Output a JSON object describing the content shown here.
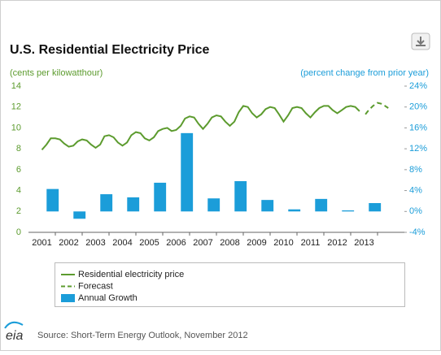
{
  "chart_data": {
    "type": "line",
    "title": "U.S. Residential Electricity Price",
    "ylabel": "(cents per kilowatthour)",
    "y2label": "(percent change from prior year)",
    "source": "Source: Short-Term Energy Outlook, November 2012",
    "logo": "eia",
    "xlim": [
      2000.5,
      2014.5
    ],
    "xticks": [
      2001,
      2002,
      2003,
      2004,
      2005,
      2006,
      2007,
      2008,
      2009,
      2010,
      2011,
      2012,
      2013
    ],
    "ylim": [
      0,
      14
    ],
    "yticks": [
      0,
      2,
      4,
      6,
      8,
      10,
      12,
      14
    ],
    "y2lim": [
      -4,
      24
    ],
    "y2ticks": [
      {
        "value": -4,
        "label": "-4%"
      },
      {
        "value": 0,
        "label": "0%"
      },
      {
        "value": 4,
        "label": "4%"
      },
      {
        "value": 8,
        "label": "8%"
      },
      {
        "value": 12,
        "label": "12%"
      },
      {
        "value": 16,
        "label": "16%"
      },
      {
        "value": 20,
        "label": "20%"
      },
      {
        "value": 24,
        "label": "24%"
      }
    ],
    "series": [
      {
        "name": "Residential electricity price",
        "type": "line",
        "color": "#5c9b2e",
        "x": [
          2001,
          2001.17,
          2001.33,
          2001.5,
          2001.67,
          2001.83,
          2002,
          2002.17,
          2002.33,
          2002.5,
          2002.67,
          2002.83,
          2003,
          2003.17,
          2003.33,
          2003.5,
          2003.67,
          2003.83,
          2004,
          2004.17,
          2004.33,
          2004.5,
          2004.67,
          2004.83,
          2005,
          2005.17,
          2005.33,
          2005.5,
          2005.67,
          2005.83,
          2006,
          2006.17,
          2006.33,
          2006.5,
          2006.67,
          2006.83,
          2007,
          2007.17,
          2007.33,
          2007.5,
          2007.67,
          2007.83,
          2008,
          2008.17,
          2008.33,
          2008.5,
          2008.67,
          2008.83,
          2009,
          2009.17,
          2009.33,
          2009.5,
          2009.67,
          2009.83,
          2010,
          2010.17,
          2010.33,
          2010.5,
          2010.67,
          2010.83,
          2011,
          2011.17,
          2011.33,
          2011.5,
          2011.67,
          2011.83,
          2012,
          2012.17,
          2012.33,
          2012.5,
          2012.67,
          2012.83
        ],
        "values": [
          7.9,
          8.4,
          9.0,
          9.0,
          8.9,
          8.5,
          8.2,
          8.3,
          8.7,
          8.9,
          8.8,
          8.4,
          8.1,
          8.4,
          9.2,
          9.3,
          9.1,
          8.6,
          8.3,
          8.6,
          9.3,
          9.6,
          9.5,
          9.0,
          8.8,
          9.1,
          9.7,
          9.9,
          10.0,
          9.7,
          9.8,
          10.2,
          10.9,
          11.1,
          11.0,
          10.4,
          9.9,
          10.4,
          11.0,
          11.2,
          11.1,
          10.6,
          10.2,
          10.6,
          11.5,
          12.1,
          12.0,
          11.4,
          11.0,
          11.3,
          11.8,
          12.0,
          11.9,
          11.3,
          10.6,
          11.2,
          11.9,
          12.0,
          11.9,
          11.4,
          11.0,
          11.5,
          11.9,
          12.1,
          12.1,
          11.7,
          11.4,
          11.7,
          12.0,
          12.1,
          12.0,
          11.6
        ]
      },
      {
        "name": "Forecast",
        "type": "line",
        "dashed": true,
        "color": "#5c9b2e",
        "x": [
          2013.05,
          2013.17,
          2013.33,
          2013.5,
          2013.67,
          2013.9
        ],
        "values": [
          11.3,
          11.7,
          12.1,
          12.4,
          12.3,
          11.9
        ]
      },
      {
        "name": "Annual Growth",
        "type": "bar",
        "axis": "y2",
        "color": "#1b9dd9",
        "x": [
          2001,
          2002,
          2003,
          2004,
          2005,
          2006,
          2007,
          2008,
          2009,
          2010,
          2011,
          2012,
          2013
        ],
        "values": [
          4.3,
          -1.4,
          3.3,
          2.7,
          5.5,
          15,
          2.5,
          5.8,
          2.2,
          0.4,
          2.4,
          0.2,
          1.6
        ]
      }
    ],
    "ylabel_color": "#5c9b2e",
    "y2label_color": "#1b9dd9"
  }
}
